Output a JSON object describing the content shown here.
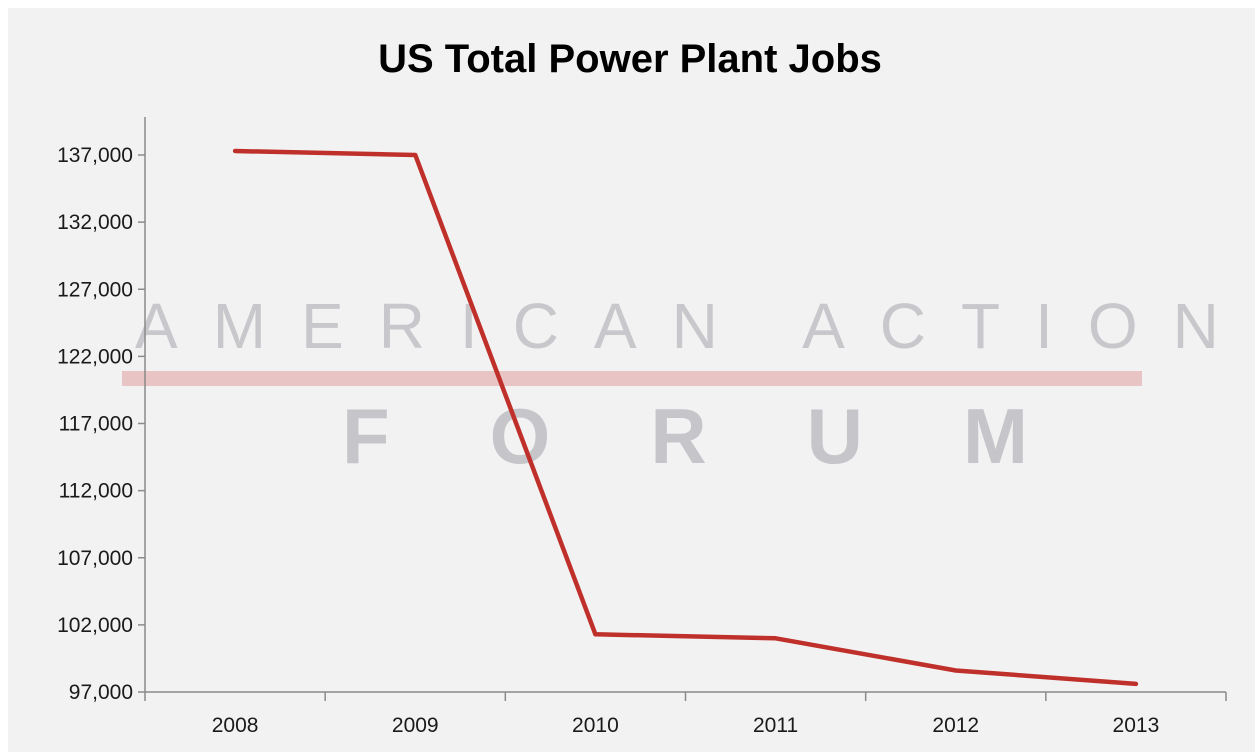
{
  "watermark": {
    "line1": "AMERICAN ACTION",
    "line2": "FORUM",
    "bar_color": "#e8c4c4"
  },
  "chart_data": {
    "type": "line",
    "title": "US Total Power Plant Jobs",
    "xlabel": "",
    "ylabel": "",
    "categories": [
      "2008",
      "2009",
      "2010",
      "2011",
      "2012",
      "2013"
    ],
    "series": [
      {
        "values": [
          137300,
          137000,
          101300,
          101000,
          98600,
          97600
        ],
        "color": "#c0302b"
      }
    ],
    "ylim": [
      97000,
      137000
    ],
    "yticks": [
      97000,
      102000,
      107000,
      112000,
      117000,
      122000,
      127000,
      132000,
      137000
    ],
    "ytick_labels": [
      "97,000",
      "102,000",
      "107,000",
      "112,000",
      "117,000",
      "122,000",
      "127,000",
      "132,000",
      "137,000"
    ],
    "grid": false,
    "legend": "none"
  }
}
